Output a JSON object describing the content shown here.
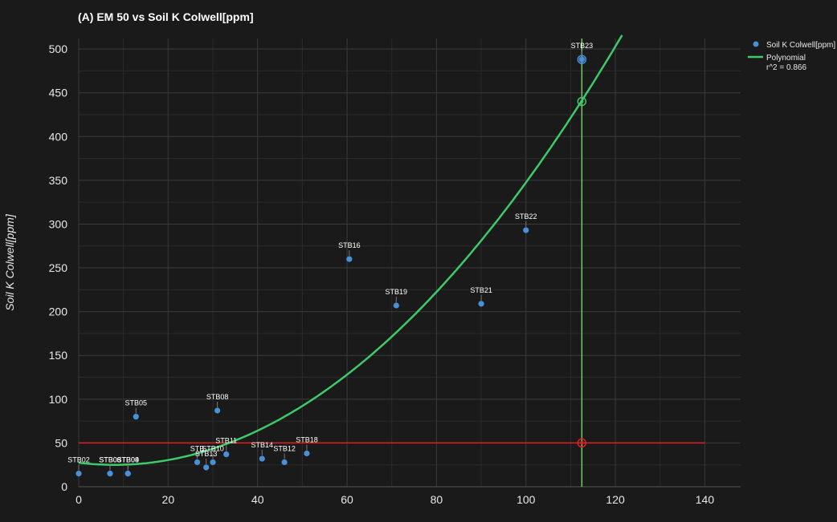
{
  "chart_data": {
    "type": "scatter",
    "title": "(A) EM 50 vs Soil K Colwell[ppm]",
    "xlabel": "",
    "ylabel": "Soil K Colwell[ppm]",
    "xlim": [
      0,
      148
    ],
    "ylim": [
      0,
      512
    ],
    "x_ticks": [
      "0",
      "20",
      "40",
      "60",
      "80",
      "100",
      "120",
      "140"
    ],
    "y_ticks": [
      "0",
      "50",
      "100",
      "150",
      "200",
      "250",
      "300",
      "350",
      "400",
      "450",
      "500"
    ],
    "grid": true,
    "legend_position": "top-right",
    "series": [
      {
        "name": "Soil K Colwell[ppm]",
        "color": "#4a90d9",
        "points": [
          {
            "label": "STB02",
            "x": 0,
            "y": 15
          },
          {
            "label": "STB03",
            "x": 7,
            "y": 15
          },
          {
            "label": "STB06",
            "x": 7,
            "y": 15
          },
          {
            "label": "STB04",
            "x": 11,
            "y": 15
          },
          {
            "label": "STB05",
            "x": 12.8,
            "y": 80
          },
          {
            "label": "STB09",
            "x": 11,
            "y": 15
          },
          {
            "label": "STB",
            "x": 26.5,
            "y": 28
          },
          {
            "label": "STB13",
            "x": 28.5,
            "y": 22
          },
          {
            "label": "STB10",
            "x": 30,
            "y": 28
          },
          {
            "label": "STB08",
            "x": 31,
            "y": 87
          },
          {
            "label": "STB11",
            "x": 33,
            "y": 37
          },
          {
            "label": "STB14",
            "x": 41,
            "y": 32
          },
          {
            "label": "STB12",
            "x": 46,
            "y": 28
          },
          {
            "label": "STB18",
            "x": 51,
            "y": 38
          },
          {
            "label": "STB16",
            "x": 60.5,
            "y": 260
          },
          {
            "label": "STB19",
            "x": 71,
            "y": 207
          },
          {
            "label": "STB21",
            "x": 90,
            "y": 209
          },
          {
            "label": "STB22",
            "x": 100,
            "y": 293
          },
          {
            "label": "STB23",
            "x": 112.5,
            "y": 488
          }
        ]
      },
      {
        "name": "Polynomial",
        "sub_label": "r^2 = 0.866",
        "color": "#3ec96a",
        "fit": {
          "vertex_x": 8,
          "vertex_y": 25,
          "k": 0.0381
        }
      }
    ],
    "reference_lines": [
      {
        "orientation": "horizontal",
        "y": 50,
        "x_end": 140,
        "color": "#e02020"
      },
      {
        "orientation": "vertical",
        "x": 112.5,
        "color": "#7ac96a"
      }
    ],
    "markers": [
      {
        "x": 112.5,
        "y": 50,
        "color": "#e02020"
      },
      {
        "x": 112.5,
        "y": 440,
        "color": "#3ec96a"
      },
      {
        "x": 112.5,
        "y": 488,
        "color": "#4a90d9"
      }
    ]
  }
}
